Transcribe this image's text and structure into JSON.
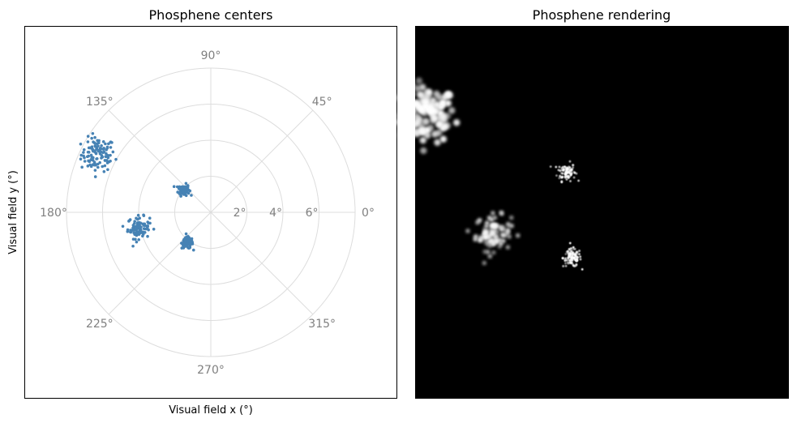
{
  "chart_data": [
    {
      "type": "scatter",
      "projection": "polar",
      "title": "Phosphene centers",
      "xlabel": "Visual field x (°)",
      "ylabel": "Visual field y (°)",
      "theta_ticks": [
        "0°",
        "45°",
        "90°",
        "135°",
        "180°",
        "225°",
        "270°",
        "315°"
      ],
      "theta_tick_values": [
        0,
        45,
        90,
        135,
        180,
        225,
        270,
        315
      ],
      "r_ticks": [
        "2°",
        "4°",
        "6°"
      ],
      "r_tick_values": [
        2,
        4,
        6
      ],
      "rlim": [
        0,
        8
      ],
      "grid": true,
      "marker_color": "#4682b4",
      "series": [
        {
          "values": [
            {
              "x": -6.25,
              "y": 3.2
            }
          ],
          "spread": 0.85,
          "count": 110
        },
        {
          "values": [
            {
              "x": -1.5,
              "y": 1.25
            }
          ],
          "spread": 0.28,
          "count": 90
        },
        {
          "values": [
            {
              "x": -4.0,
              "y": -0.85
            }
          ],
          "spread": 0.55,
          "count": 90
        },
        {
          "values": [
            {
              "x": -1.3,
              "y": -1.7
            }
          ],
          "spread": 0.28,
          "count": 110
        }
      ]
    },
    {
      "type": "heatmap",
      "title": "Phosphene rendering",
      "background": "#000000",
      "colormap": "gray"
    }
  ]
}
